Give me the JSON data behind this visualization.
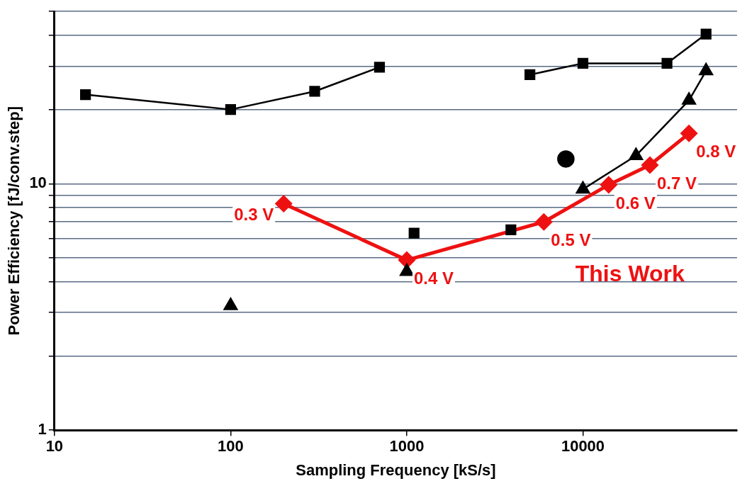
{
  "chart_data": {
    "type": "scatter",
    "xlabel": "Sampling Frequency [kS/s]",
    "ylabel": "Power Efficiency [fJ/conv.step]",
    "log": "xy",
    "grid": "y",
    "legend": false,
    "xlim": [
      10,
      75000
    ],
    "xticks": [
      10,
      100,
      1000,
      10000
    ],
    "ylim": [
      1,
      50
    ],
    "yticks": [
      1,
      {
        "value": 2,
        "label": null
      },
      {
        "value": 3,
        "label": null
      },
      {
        "value": 4,
        "label": null
      },
      {
        "value": 5,
        "label": null
      },
      {
        "value": 6,
        "label": null
      },
      {
        "value": 7,
        "label": null
      },
      {
        "value": 8,
        "label": null
      },
      {
        "value": 9,
        "label": null
      },
      10,
      {
        "value": 20,
        "label": null
      },
      {
        "value": 30,
        "label": null
      },
      {
        "value": 40,
        "label": null
      },
      {
        "value": 50,
        "label": null
      }
    ],
    "series": [
      {
        "type": "line",
        "marker": "square",
        "color": "#000000",
        "x": [
          15,
          100,
          300,
          700
        ],
        "values": [
          23,
          20,
          23.7,
          29.7
        ]
      },
      {
        "type": "line",
        "marker": "square",
        "color": "#000000",
        "x": [
          5000,
          10000,
          30000,
          50000
        ],
        "values": [
          27.7,
          30.8,
          30.8,
          40.5
        ]
      },
      {
        "type": "scatter",
        "marker": "square",
        "color": "#000000",
        "x": [
          1100,
          3900
        ],
        "values": [
          6.3,
          6.5
        ]
      },
      {
        "type": "line",
        "marker": "triangle",
        "color": "#000000",
        "x": [
          10000,
          20000,
          40000,
          50000
        ],
        "values": [
          9.5,
          13,
          21.8,
          28.7
        ]
      },
      {
        "type": "scatter",
        "marker": "triangle",
        "color": "#000000",
        "x": [
          100
        ],
        "values": [
          3.2
        ]
      },
      {
        "type": "scatter",
        "marker": "triangle",
        "color": "#000000",
        "x": [
          1000
        ],
        "values": [
          4.4
        ]
      },
      {
        "type": "scatter",
        "marker": "circle",
        "color": "#000000",
        "x": [
          8000
        ],
        "values": [
          12.6
        ]
      },
      {
        "type": "line",
        "marker": "diamond",
        "name": "This Work",
        "color": "#ee1111",
        "x": [
          200,
          1000,
          6000,
          14000,
          24000,
          40000
        ],
        "values": [
          8.3,
          4.9,
          7.0,
          9.9,
          11.9,
          16
        ]
      }
    ],
    "annotations": [
      {
        "text": "0.3 V",
        "x": 200,
        "y": 8.3
      },
      {
        "text": "0.4 V",
        "x": 1000,
        "y": 4.9
      },
      {
        "text": "0.5 V",
        "x": 6000,
        "y": 7.0
      },
      {
        "text": "0.6 V",
        "x": 14000,
        "y": 9.9
      },
      {
        "text": "0.7 V",
        "x": 24000,
        "y": 11.9
      },
      {
        "text": "0.8 V",
        "x": 40000,
        "y": 16
      }
    ]
  }
}
